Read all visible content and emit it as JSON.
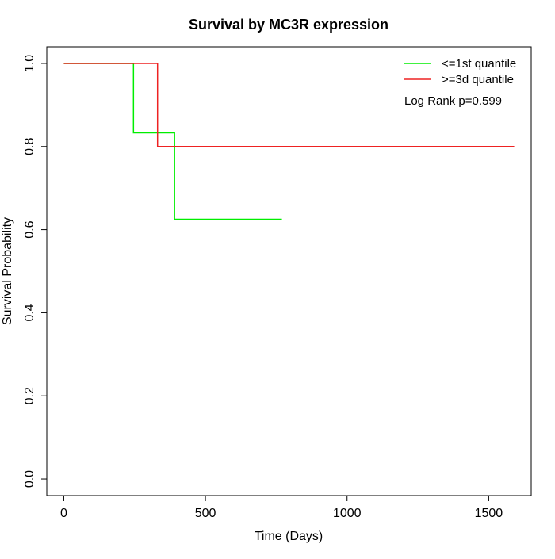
{
  "chart_data": {
    "type": "line",
    "title": "Survival by MC3R expression",
    "xlabel": "Time (Days)",
    "ylabel": "Survival Probability",
    "xlim": [
      -60,
      1650
    ],
    "ylim": [
      -0.04,
      1.04
    ],
    "x_ticks": [
      0,
      500,
      1000,
      1500
    ],
    "x_tick_labels": [
      "0",
      "500",
      "1000",
      "1500"
    ],
    "y_ticks": [
      0.0,
      0.2,
      0.4,
      0.6,
      0.8,
      1.0
    ],
    "y_tick_labels": [
      "0.0",
      "0.2",
      "0.4",
      "0.6",
      "0.8",
      "1.0"
    ],
    "grid": false,
    "step": true,
    "legend_position": "top-right",
    "annotation": "Log Rank p=0.599",
    "series": [
      {
        "name": "<=1st quantile",
        "color": "#00ee00",
        "x": [
          0,
          246,
          391,
          770
        ],
        "y": [
          1.0,
          0.833,
          0.625,
          0.625
        ]
      },
      {
        "name": ">=3d quantile",
        "color": "#ee2222",
        "x": [
          0,
          331,
          1590
        ],
        "y": [
          1.0,
          0.8,
          0.8
        ]
      }
    ]
  }
}
